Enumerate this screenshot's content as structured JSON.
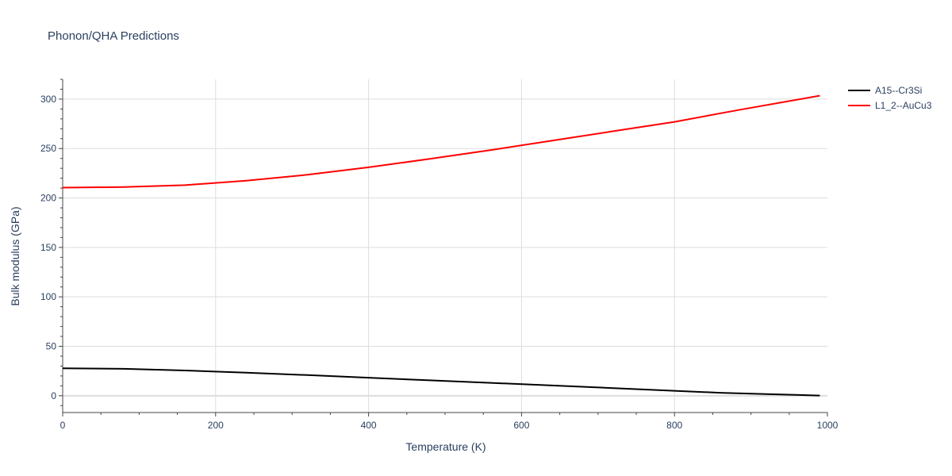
{
  "chart_data": {
    "type": "line",
    "title": "Phonon/QHA Predictions",
    "xlabel": "Temperature (K)",
    "ylabel": "Bulk modulus (GPa)",
    "xlim": [
      0,
      1000
    ],
    "ylim": [
      -17,
      320
    ],
    "x_ticks": [
      0,
      200,
      400,
      600,
      800,
      1000
    ],
    "y_ticks": [
      0,
      50,
      100,
      150,
      200,
      250,
      300
    ],
    "grid": true,
    "legend_position": "top-right",
    "series": [
      {
        "name": "A15--Cr3Si",
        "color": "#000000",
        "x": [
          0,
          80,
          160,
          240,
          320,
          400,
          480,
          560,
          640,
          720,
          800,
          860,
          920,
          990
        ],
        "y": [
          27.8,
          27.2,
          25.5,
          23.3,
          20.9,
          18.2,
          15.6,
          13.0,
          10.4,
          7.7,
          5.0,
          3.0,
          1.6,
          0.2
        ]
      },
      {
        "name": "L1_2--AuCu3",
        "color": "#ff0000",
        "x": [
          0,
          80,
          160,
          240,
          320,
          400,
          480,
          560,
          640,
          720,
          800,
          880,
          990
        ],
        "y": [
          210.5,
          211.0,
          213.0,
          217.5,
          223.5,
          231.0,
          239.5,
          248.5,
          258.0,
          267.5,
          277.0,
          288.5,
          303.5
        ]
      }
    ]
  }
}
